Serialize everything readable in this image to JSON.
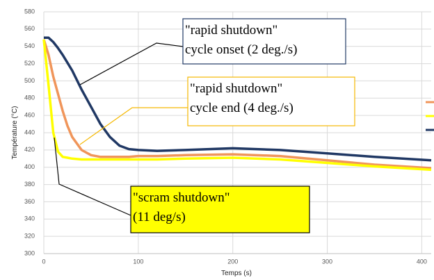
{
  "chart_data": {
    "type": "line",
    "xlabel": "Temps (s)",
    "ylabel": "Température (°C)",
    "x": [
      0,
      5,
      10,
      15,
      20,
      25,
      30,
      40,
      50,
      60,
      70,
      80,
      90,
      100,
      120,
      150,
      200,
      250,
      300,
      350,
      410
    ],
    "series": [
      {
        "color": "#203864",
        "values": [
          550,
          550,
          545,
          538,
          530,
          521,
          512,
          490,
          470,
          450,
          435,
          425,
          421,
          420,
          419,
          420,
          422,
          420,
          416,
          412,
          408
        ]
      },
      {
        "color": "#f0955a",
        "values": [
          548,
          530,
          505,
          485,
          465,
          448,
          435,
          420,
          414,
          412,
          412,
          412,
          412,
          413,
          413,
          414,
          415,
          413,
          408,
          403,
          399
        ]
      },
      {
        "color": "#ffff00",
        "values": [
          548,
          495,
          440,
          418,
          412,
          411,
          410,
          409,
          409,
          409,
          409,
          409,
          409,
          409,
          409,
          410,
          411,
          409,
          405,
          401,
          397
        ]
      }
    ],
    "xlim": [
      0,
      410
    ],
    "ylim": [
      300,
      580
    ],
    "xticks": [
      0,
      100,
      200,
      300,
      400
    ],
    "yticks": [
      300,
      320,
      340,
      360,
      380,
      400,
      420,
      440,
      460,
      480,
      500,
      520,
      540,
      560,
      580
    ],
    "grid": true,
    "annotations": [
      {
        "lines": [
          "\"rapid shutdown\"",
          "cycle onset (2 deg./s)"
        ]
      },
      {
        "lines": [
          "\"rapid shutdown\"",
          "cycle end (4 deg./s)"
        ]
      },
      {
        "lines": [
          "\"scram shutdown\"",
          "(11 deg/s)"
        ]
      }
    ]
  }
}
